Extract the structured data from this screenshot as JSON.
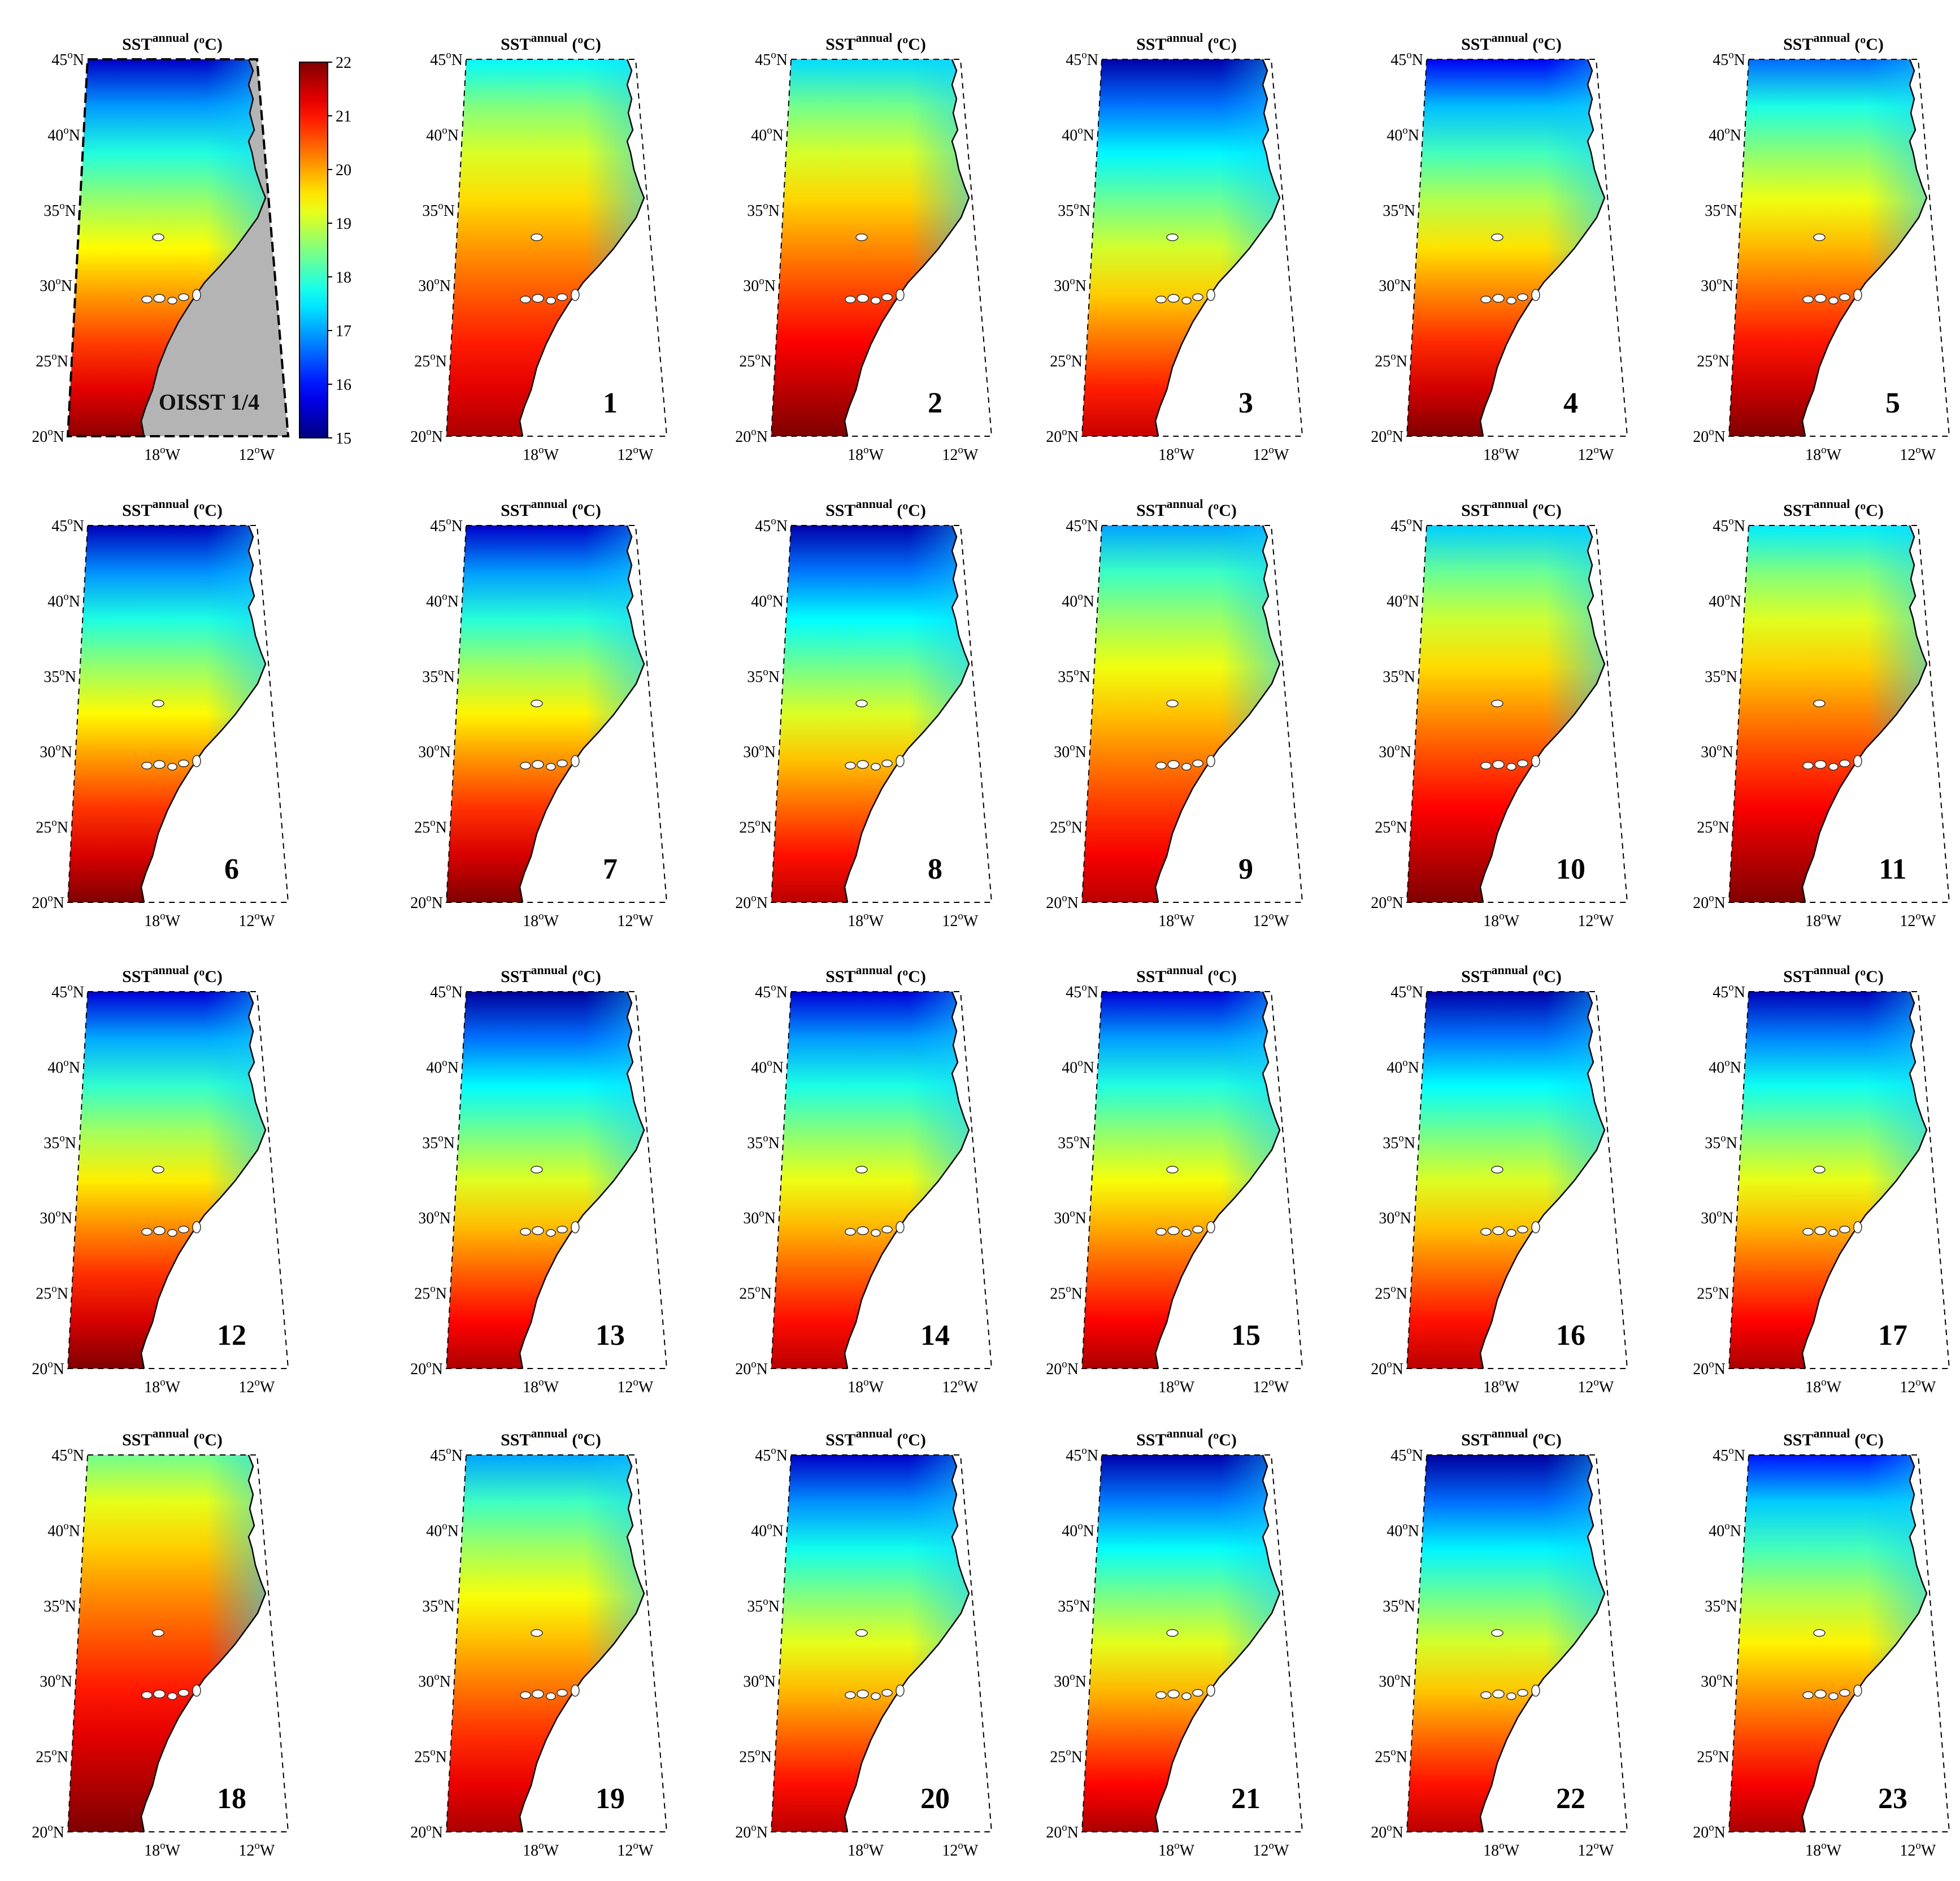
{
  "figure": {
    "panel_title_base": "SST",
    "panel_title_sup": "annual",
    "panel_title_unit": "(ºC)",
    "lat_ticks": [
      {
        "deg": "45",
        "sym": "o",
        "hem": "N"
      },
      {
        "deg": "40",
        "sym": "o",
        "hem": "N"
      },
      {
        "deg": "35",
        "sym": "o",
        "hem": "N"
      },
      {
        "deg": "30",
        "sym": "o",
        "hem": "N"
      },
      {
        "deg": "25",
        "sym": "o",
        "hem": "N"
      },
      {
        "deg": "20",
        "sym": "o",
        "hem": "N"
      }
    ],
    "lon_ticks": [
      {
        "deg": "18",
        "sym": "o",
        "hem": "W"
      },
      {
        "deg": "12",
        "sym": "o",
        "hem": "W"
      }
    ],
    "reference_label": "OISST 1/4",
    "colorbar": {
      "ticks": [
        "22",
        "21",
        "20",
        "19",
        "18",
        "17",
        "16",
        "15"
      ],
      "range": [
        15,
        22
      ],
      "colormap": "jet"
    },
    "colors": {
      "land_reference": "#b4b4b4",
      "land_models": "#ffffff",
      "coast": "#000000"
    },
    "panels": [
      {
        "label": "",
        "reference": true,
        "tN": 15.5,
        "tS": 21.9
      },
      {
        "label": "1",
        "tN": 17.6,
        "tS": 21.7
      },
      {
        "label": "2",
        "tN": 17.4,
        "tS": 22.0
      },
      {
        "label": "3",
        "tN": 15.3,
        "tS": 21.5
      },
      {
        "label": "4",
        "tN": 15.8,
        "tS": 22.0
      },
      {
        "label": "5",
        "tN": 16.6,
        "tS": 22.0
      },
      {
        "label": "6",
        "tN": 15.4,
        "tS": 22.0
      },
      {
        "label": "7",
        "tN": 15.5,
        "tS": 22.0
      },
      {
        "label": "8",
        "tN": 15.3,
        "tS": 21.6
      },
      {
        "label": "9",
        "tN": 17.0,
        "tS": 21.6
      },
      {
        "label": "10",
        "tN": 17.3,
        "tS": 22.0
      },
      {
        "label": "11",
        "tN": 17.5,
        "tS": 22.0
      },
      {
        "label": "12",
        "tN": 15.6,
        "tS": 22.0
      },
      {
        "label": "13",
        "tN": 15.2,
        "tS": 21.7
      },
      {
        "label": "14",
        "tN": 15.6,
        "tS": 21.6
      },
      {
        "label": "15",
        "tN": 15.6,
        "tS": 21.7
      },
      {
        "label": "16",
        "tN": 15.3,
        "tS": 21.6
      },
      {
        "label": "17",
        "tN": 15.4,
        "tS": 21.7
      },
      {
        "label": "18",
        "tN": 18.4,
        "tS": 22.0
      },
      {
        "label": "19",
        "tN": 17.0,
        "tS": 21.7
      },
      {
        "label": "20",
        "tN": 15.5,
        "tS": 21.6
      },
      {
        "label": "21",
        "tN": 15.3,
        "tS": 21.7
      },
      {
        "label": "22",
        "tN": 15.2,
        "tS": 21.6
      },
      {
        "label": "23",
        "tN": 16.0,
        "tS": 21.7
      }
    ]
  }
}
